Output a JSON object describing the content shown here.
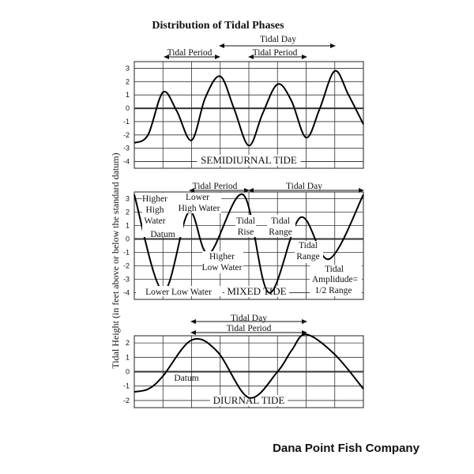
{
  "title": "Distribution of Tidal Phases",
  "ylabel": "Tidal Height (in feet above or below the standard datum)",
  "brand": "Dana Point Fish Company",
  "chart_data": [
    {
      "type": "line",
      "name": "SEMIDIURNAL TIDE",
      "yticks": [
        "3",
        "2",
        "1",
        "0",
        "-1",
        "-2",
        "-3",
        "-4"
      ],
      "ylim": [
        -4.5,
        3.5
      ],
      "xlim": [
        0,
        8
      ],
      "grid": true,
      "x": [
        0,
        0.48,
        1.0,
        1.48,
        2.0,
        2.48,
        3.0,
        3.48,
        4.0,
        4.48,
        5.0,
        5.48,
        6.0,
        6.48,
        7.0,
        7.48,
        8.0
      ],
      "y": [
        -2.6,
        -2.0,
        1.2,
        -0.2,
        -2.4,
        0.8,
        2.4,
        0.0,
        -2.8,
        -0.4,
        1.8,
        0.6,
        -2.2,
        0.0,
        2.8,
        1.0,
        -1.2
      ],
      "annotations": [
        "Tidal Period",
        "Tidal Day",
        "Tidal Period"
      ]
    },
    {
      "type": "line",
      "name": "MIXED TIDE",
      "yticks": [
        "3",
        "2",
        "1",
        "0",
        "-1",
        "-2",
        "-3",
        "-4"
      ],
      "ylim": [
        -4.5,
        3.5
      ],
      "xlim": [
        0,
        8
      ],
      "grid": true,
      "x": [
        0,
        1.0,
        1.9,
        2.6,
        3.8,
        4.7,
        5.8,
        6.8,
        8.0
      ],
      "y": [
        3.3,
        -3.9,
        2.0,
        -1.1,
        3.3,
        -4.0,
        1.6,
        -1.5,
        3.3
      ],
      "annotations": [
        "Tidal Period",
        "Lower High Water",
        "Tidal Day",
        "Higher High Water",
        "Datum",
        "Tidal Rise",
        "Tidal Range",
        "Higher Low Water",
        "Tidal Range",
        "Tidal Amplidude= 1/2 Range",
        "Lower Low Water"
      ]
    },
    {
      "type": "line",
      "name": "DIURNAL TIDE",
      "yticks": [
        "2",
        "1",
        "0",
        "-1",
        "-2"
      ],
      "ylim": [
        -2.5,
        2.5
      ],
      "xlim": [
        0,
        8
      ],
      "grid": true,
      "x": [
        0,
        0.5,
        1.0,
        2.0,
        2.9,
        4.0,
        5.0,
        5.5,
        6.0,
        7.0,
        8.0
      ],
      "y": [
        -1.4,
        -1.2,
        -0.3,
        2.2,
        1.4,
        -1.8,
        0.0,
        1.5,
        2.6,
        1.2,
        -1.2
      ],
      "annotations": [
        "Tidal Day",
        "Tidal Period",
        "Datum"
      ]
    }
  ],
  "labels": {
    "semi_period": "Tidal Period",
    "semi_day": "Tidal Day",
    "semi_period2": "Tidal Period",
    "mixed_period": "Tidal Period",
    "mixed_day": "Tidal Day",
    "mixed_higher": "Higher",
    "mixed_high": "High",
    "mixed_water": "Water",
    "mixed_datum": "Datum",
    "mixed_lower": "Lower",
    "mixed_high_water": "High Water",
    "mixed_tidal1": "Tidal",
    "mixed_rise": "Rise",
    "mixed_tidal2": "Tidal",
    "mixed_range1": "Range",
    "mixed_tidal3": "Tidal",
    "mixed_range2": "Range",
    "mixed_higher2": "Higher",
    "mixed_low_water": "Low Water",
    "mixed_tidal4": "Tidal",
    "mixed_amplitude": "Amplidude=",
    "mixed_half_range": "1/2 Range",
    "mixed_lower_low": "Lower Low Water",
    "diurnal_day": "Tidal Day",
    "diurnal_period": "Tidal Period",
    "diurnal_datum": "Datum"
  }
}
